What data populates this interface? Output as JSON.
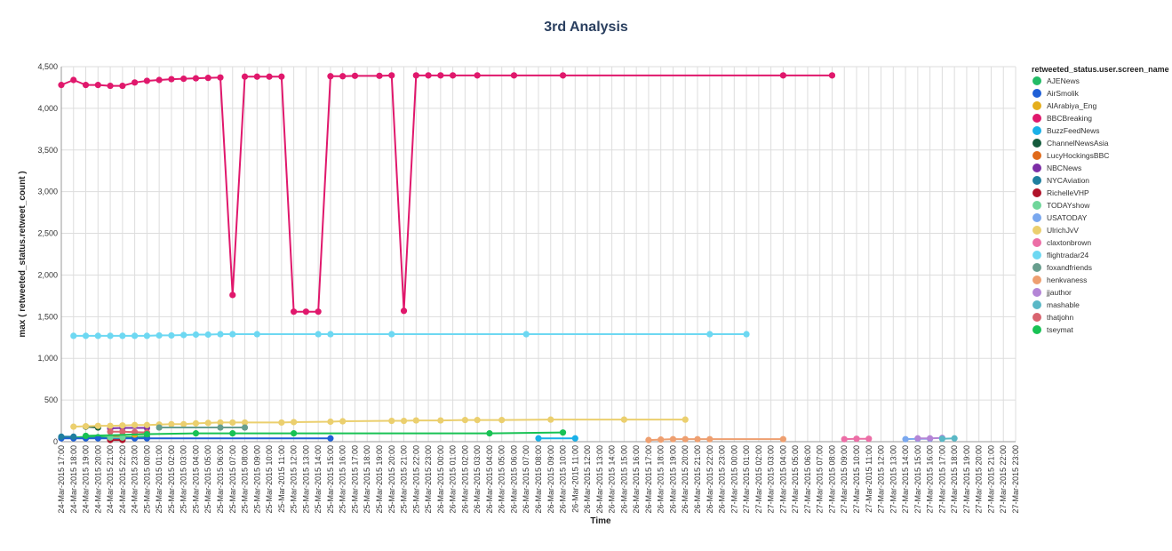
{
  "chart_data": {
    "type": "line",
    "title": "3rd Analysis",
    "xlabel": "Time",
    "ylabel": "max ( retweeted_status.retweet_count )",
    "ylim": [
      0,
      4500
    ],
    "yticks": [
      "0",
      "500",
      "1,000",
      "1,500",
      "2,000",
      "2,500",
      "3,000",
      "3,500",
      "4,000",
      "4,500"
    ],
    "ytick_values": [
      0,
      500,
      1000,
      1500,
      2000,
      2500,
      3000,
      3500,
      4000,
      4500
    ],
    "grid": true,
    "legend_placement": "right",
    "legend_title": "retweeted_status.user.screen_name",
    "categories": [
      "24-Mar-2015 17:00",
      "24-Mar-2015 18:00",
      "24-Mar-2015 19:00",
      "24-Mar-2015 20:00",
      "24-Mar-2015 21:00",
      "24-Mar-2015 22:00",
      "24-Mar-2015 23:00",
      "25-Mar-2015 00:00",
      "25-Mar-2015 01:00",
      "25-Mar-2015 02:00",
      "25-Mar-2015 03:00",
      "25-Mar-2015 04:00",
      "25-Mar-2015 05:00",
      "25-Mar-2015 06:00",
      "25-Mar-2015 07:00",
      "25-Mar-2015 08:00",
      "25-Mar-2015 09:00",
      "25-Mar-2015 10:00",
      "25-Mar-2015 11:00",
      "25-Mar-2015 12:00",
      "25-Mar-2015 13:00",
      "25-Mar-2015 14:00",
      "25-Mar-2015 15:00",
      "25-Mar-2015 16:00",
      "25-Mar-2015 17:00",
      "25-Mar-2015 18:00",
      "25-Mar-2015 19:00",
      "25-Mar-2015 20:00",
      "25-Mar-2015 21:00",
      "25-Mar-2015 22:00",
      "25-Mar-2015 23:00",
      "26-Mar-2015 00:00",
      "26-Mar-2015 01:00",
      "26-Mar-2015 02:00",
      "26-Mar-2015 03:00",
      "26-Mar-2015 04:00",
      "26-Mar-2015 05:00",
      "26-Mar-2015 06:00",
      "26-Mar-2015 07:00",
      "26-Mar-2015 08:00",
      "26-Mar-2015 09:00",
      "26-Mar-2015 10:00",
      "26-Mar-2015 11:00",
      "26-Mar-2015 12:00",
      "26-Mar-2015 13:00",
      "26-Mar-2015 14:00",
      "26-Mar-2015 15:00",
      "26-Mar-2015 16:00",
      "26-Mar-2015 17:00",
      "26-Mar-2015 18:00",
      "26-Mar-2015 19:00",
      "26-Mar-2015 20:00",
      "26-Mar-2015 21:00",
      "26-Mar-2015 22:00",
      "26-Mar-2015 23:00",
      "27-Mar-2015 00:00",
      "27-Mar-2015 01:00",
      "27-Mar-2015 02:00",
      "27-Mar-2015 03:00",
      "27-Mar-2015 04:00",
      "27-Mar-2015 05:00",
      "27-Mar-2015 06:00",
      "27-Mar-2015 07:00",
      "27-Mar-2015 08:00",
      "27-Mar-2015 09:00",
      "27-Mar-2015 10:00",
      "27-Mar-2015 11:00",
      "27-Mar-2015 12:00",
      "27-Mar-2015 13:00",
      "27-Mar-2015 14:00",
      "27-Mar-2015 15:00",
      "27-Mar-2015 16:00",
      "27-Mar-2015 17:00",
      "27-Mar-2015 18:00",
      "27-Mar-2015 19:00",
      "27-Mar-2015 20:00",
      "27-Mar-2015 21:00",
      "27-Mar-2015 22:00",
      "27-Mar-2015 23:00"
    ],
    "series": [
      {
        "name": "AJENews",
        "color": "#22bb66",
        "points": [
          [
            0,
            50
          ],
          [
            1,
            50
          ],
          [
            2,
            60
          ],
          [
            3,
            55
          ],
          [
            4,
            50
          ],
          [
            5,
            55
          ],
          [
            6,
            55
          ],
          [
            7,
            60
          ]
        ]
      },
      {
        "name": "AirSmolik",
        "color": "#1f5fd6",
        "points": [
          [
            0,
            40
          ],
          [
            1,
            40
          ],
          [
            2,
            40
          ],
          [
            3,
            40
          ],
          [
            4,
            40
          ],
          [
            5,
            40
          ],
          [
            6,
            40
          ],
          [
            7,
            40
          ],
          [
            22,
            40
          ]
        ]
      },
      {
        "name": "AlArabiya_Eng",
        "color": "#e5ae1c",
        "points": [
          [
            5,
            80
          ],
          [
            6,
            85
          ],
          [
            7,
            90
          ]
        ]
      },
      {
        "name": "BBCBreaking",
        "color": "#e0186c",
        "points": [
          [
            0,
            4280
          ],
          [
            1,
            4340
          ],
          [
            2,
            4280
          ],
          [
            3,
            4280
          ],
          [
            4,
            4270
          ],
          [
            5,
            4270
          ],
          [
            6,
            4310
          ],
          [
            7,
            4330
          ],
          [
            8,
            4340
          ],
          [
            9,
            4350
          ],
          [
            10,
            4355
          ],
          [
            11,
            4360
          ],
          [
            12,
            4365
          ],
          [
            13,
            4370
          ],
          [
            14,
            1760
          ],
          [
            15,
            4380
          ],
          [
            16,
            4380
          ],
          [
            17,
            4380
          ],
          [
            18,
            4380
          ],
          [
            19,
            1560
          ],
          [
            20,
            1560
          ],
          [
            21,
            1560
          ],
          [
            22,
            4385
          ],
          [
            23,
            4385
          ],
          [
            24,
            4390
          ],
          [
            26,
            4390
          ],
          [
            27,
            4395
          ],
          [
            28,
            1570
          ],
          [
            29,
            4395
          ],
          [
            30,
            4395
          ],
          [
            31,
            4395
          ],
          [
            32,
            4395
          ],
          [
            34,
            4395
          ],
          [
            37,
            4395
          ],
          [
            41,
            4395
          ],
          [
            59,
            4395
          ],
          [
            63,
            4395
          ]
        ]
      },
      {
        "name": "BuzzFeedNews",
        "color": "#1ab0e8",
        "points": [
          [
            39,
            40
          ],
          [
            42,
            40
          ]
        ]
      },
      {
        "name": "ChannelNewsAsia",
        "color": "#145a3c",
        "points": [
          [
            2,
            180
          ],
          [
            3,
            170
          ]
        ]
      },
      {
        "name": "LucyHockingsBBC",
        "color": "#e06a1a",
        "points": [
          [
            4,
            60
          ],
          [
            5,
            60
          ]
        ]
      },
      {
        "name": "NBCNews",
        "color": "#7d2ea6",
        "points": [
          [
            4,
            160
          ],
          [
            5,
            165
          ],
          [
            7,
            165
          ]
        ]
      },
      {
        "name": "NYCAviation",
        "color": "#1f7f9f",
        "points": [
          [
            0,
            60
          ],
          [
            1,
            60
          ]
        ]
      },
      {
        "name": "RichelleVHP",
        "color": "#b0132a",
        "points": [
          [
            4,
            20
          ],
          [
            5,
            20
          ]
        ]
      },
      {
        "name": "TODAYshow",
        "color": "#6fd69a",
        "points": [
          [
            4,
            50
          ],
          [
            5,
            50
          ]
        ]
      },
      {
        "name": "USATODAY",
        "color": "#7aa8ef",
        "points": [
          [
            69,
            30
          ],
          [
            70,
            35
          ],
          [
            71,
            35
          ]
        ]
      },
      {
        "name": "UlrichJvV",
        "color": "#ebcf6e",
        "points": [
          [
            1,
            180
          ],
          [
            2,
            185
          ],
          [
            3,
            190
          ],
          [
            4,
            190
          ],
          [
            5,
            195
          ],
          [
            6,
            200
          ],
          [
            7,
            200
          ],
          [
            8,
            205
          ],
          [
            9,
            210
          ],
          [
            10,
            210
          ],
          [
            11,
            220
          ],
          [
            12,
            225
          ],
          [
            13,
            230
          ],
          [
            14,
            230
          ],
          [
            15,
            230
          ],
          [
            18,
            230
          ],
          [
            19,
            235
          ],
          [
            22,
            240
          ],
          [
            23,
            245
          ],
          [
            27,
            250
          ],
          [
            28,
            250
          ],
          [
            29,
            255
          ],
          [
            31,
            255
          ],
          [
            33,
            260
          ],
          [
            34,
            260
          ],
          [
            36,
            260
          ],
          [
            40,
            265
          ],
          [
            46,
            265
          ],
          [
            51,
            265
          ]
        ]
      },
      {
        "name": "claxtonbrown",
        "color": "#ec6ea6",
        "points": [
          [
            64,
            30
          ],
          [
            65,
            35
          ],
          [
            66,
            35
          ]
        ]
      },
      {
        "name": "flightradar24",
        "color": "#6dd8f2",
        "points": [
          [
            1,
            1270
          ],
          [
            2,
            1270
          ],
          [
            3,
            1270
          ],
          [
            4,
            1270
          ],
          [
            5,
            1270
          ],
          [
            6,
            1270
          ],
          [
            7,
            1270
          ],
          [
            8,
            1275
          ],
          [
            9,
            1275
          ],
          [
            10,
            1280
          ],
          [
            11,
            1285
          ],
          [
            12,
            1285
          ],
          [
            13,
            1290
          ],
          [
            14,
            1290
          ],
          [
            16,
            1290
          ],
          [
            21,
            1290
          ],
          [
            22,
            1290
          ],
          [
            27,
            1290
          ],
          [
            38,
            1290
          ],
          [
            53,
            1290
          ],
          [
            56,
            1290
          ]
        ]
      },
      {
        "name": "foxandfriends",
        "color": "#689e8e",
        "points": [
          [
            8,
            170
          ],
          [
            13,
            170
          ],
          [
            15,
            170
          ]
        ]
      },
      {
        "name": "henkvaness",
        "color": "#ee9f70",
        "points": [
          [
            48,
            20
          ],
          [
            49,
            25
          ],
          [
            50,
            30
          ],
          [
            51,
            30
          ],
          [
            52,
            30
          ],
          [
            53,
            30
          ],
          [
            59,
            30
          ]
        ]
      },
      {
        "name": "jjauthor",
        "color": "#b485d6",
        "points": [
          [
            70,
            40
          ],
          [
            71,
            40
          ],
          [
            72,
            45
          ]
        ]
      },
      {
        "name": "mashable",
        "color": "#5ab8c6",
        "points": [
          [
            72,
            35
          ],
          [
            73,
            40
          ]
        ]
      },
      {
        "name": "thatjohn",
        "color": "#d96470",
        "points": [
          [
            4,
            120
          ],
          [
            5,
            120
          ],
          [
            6,
            115
          ],
          [
            7,
            110
          ]
        ]
      },
      {
        "name": "tseymat",
        "color": "#18c254",
        "points": [
          [
            2,
            70
          ],
          [
            7,
            90
          ],
          [
            11,
            100
          ],
          [
            14,
            100
          ],
          [
            19,
            100
          ],
          [
            35,
            100
          ],
          [
            41,
            110
          ]
        ]
      }
    ]
  }
}
